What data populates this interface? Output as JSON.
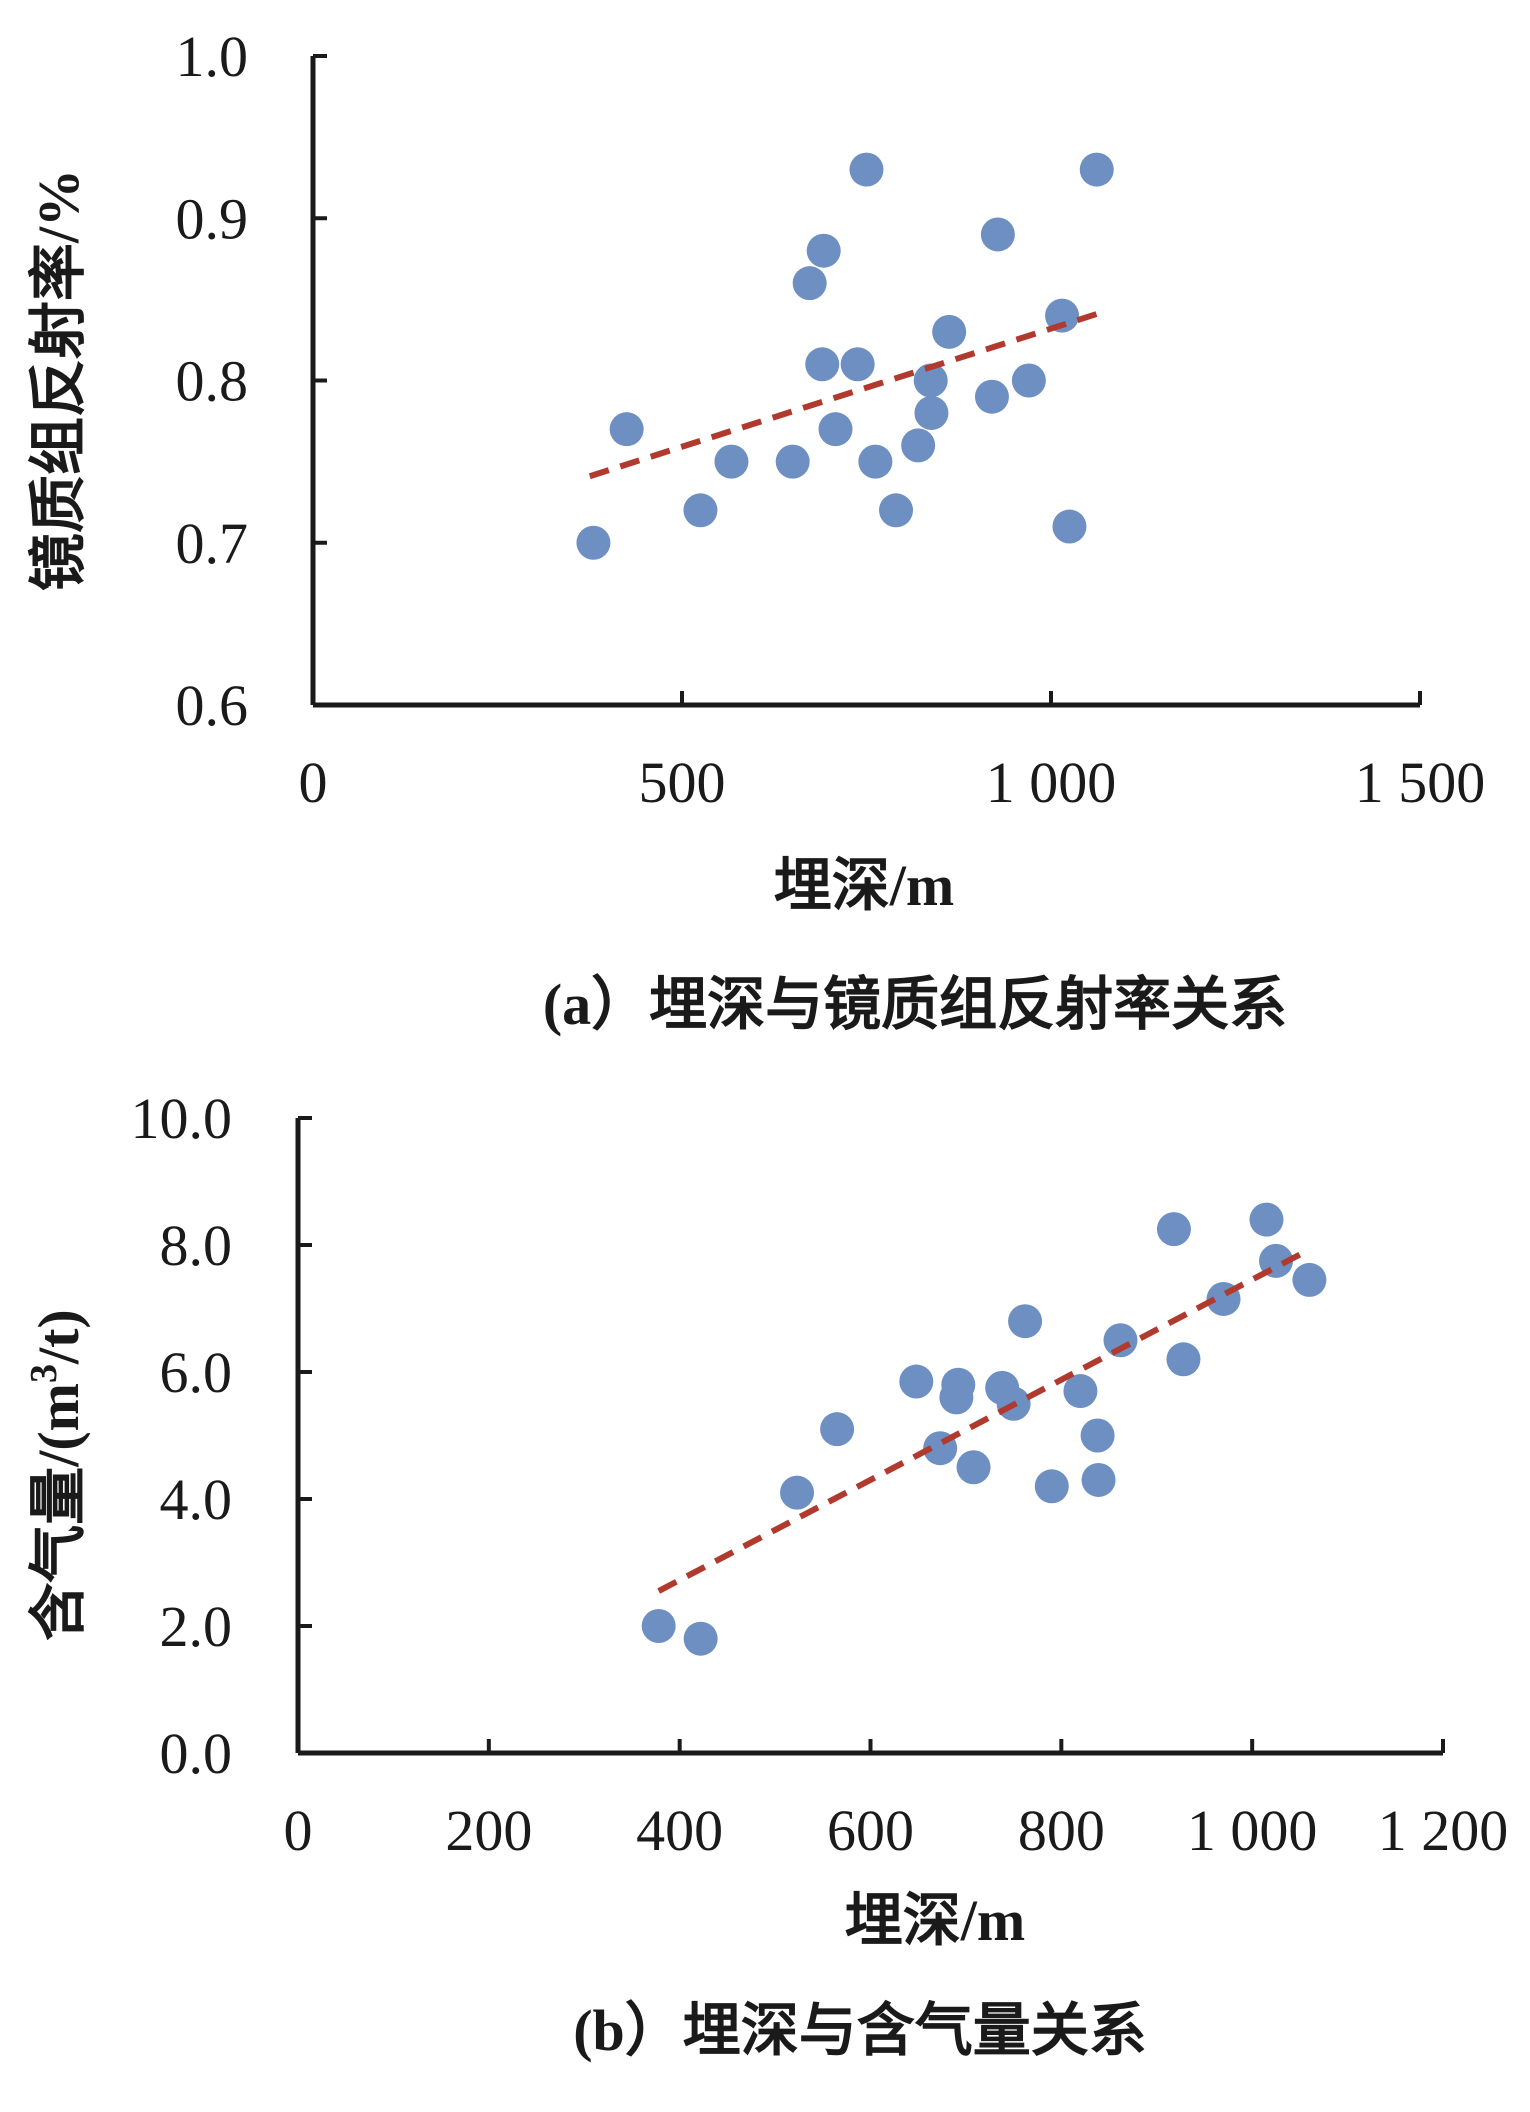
{
  "colors": {
    "point": "#6e8fc2",
    "trend": "#b03a2e",
    "axis": "#1a1a1a"
  },
  "chart_data": [
    {
      "type": "scatter",
      "caption": "(a）埋深与镜质组反射率关系",
      "xlabel": "埋深/m",
      "ylabel": "镜质组反射率/%",
      "xlim": [
        0,
        1500
      ],
      "ylim": [
        0.6,
        1.0
      ],
      "xticks": [
        0,
        500,
        1000,
        1500
      ],
      "xtick_labels": [
        "0",
        "500",
        "1 000",
        "1 500"
      ],
      "yticks": [
        0.6,
        0.7,
        0.8,
        0.9,
        1.0
      ],
      "ytick_labels": [
        "0.6",
        "0.7",
        "0.8",
        "0.9",
        "1.0"
      ],
      "points": [
        [
          380,
          0.7
        ],
        [
          425,
          0.77
        ],
        [
          525,
          0.72
        ],
        [
          567,
          0.75
        ],
        [
          650,
          0.75
        ],
        [
          673,
          0.86
        ],
        [
          690,
          0.81
        ],
        [
          692,
          0.88
        ],
        [
          708,
          0.77
        ],
        [
          738,
          0.81
        ],
        [
          750,
          0.93
        ],
        [
          762,
          0.75
        ],
        [
          790,
          0.72
        ],
        [
          820,
          0.76
        ],
        [
          837,
          0.8
        ],
        [
          838,
          0.78
        ],
        [
          862,
          0.83
        ],
        [
          920,
          0.79
        ],
        [
          928,
          0.89
        ],
        [
          970,
          0.8
        ],
        [
          1015,
          0.84
        ],
        [
          1025,
          0.71
        ],
        [
          1062,
          0.93
        ]
      ],
      "trendline": {
        "x": [
          375,
          1062
        ],
        "y": [
          0.741,
          0.841
        ]
      }
    },
    {
      "type": "scatter",
      "caption": "(b）埋深与含气量关系",
      "xlabel": "埋深/m",
      "ylabel_main": "含气量/(m",
      "ylabel_sup": "3",
      "ylabel_tail": "/t)",
      "xlim": [
        0,
        1200
      ],
      "ylim": [
        0,
        10
      ],
      "xticks": [
        0,
        200,
        400,
        600,
        800,
        1000,
        1200
      ],
      "xtick_labels": [
        "0",
        "200",
        "400",
        "600",
        "800",
        "1 000",
        "1 200"
      ],
      "yticks": [
        0,
        2,
        4,
        6,
        8,
        10
      ],
      "ytick_labels": [
        "0.0",
        "2.0",
        "4.0",
        "6.0",
        "8.0",
        "10.0"
      ],
      "points": [
        [
          378,
          2.0
        ],
        [
          422,
          1.8
        ],
        [
          523,
          4.1
        ],
        [
          565,
          5.1
        ],
        [
          648,
          5.85
        ],
        [
          673,
          4.8
        ],
        [
          690,
          5.6
        ],
        [
          692,
          5.8
        ],
        [
          708,
          4.5
        ],
        [
          738,
          5.75
        ],
        [
          750,
          5.5
        ],
        [
          762,
          6.8
        ],
        [
          790,
          4.2
        ],
        [
          820,
          5.7
        ],
        [
          838,
          5.0
        ],
        [
          839,
          4.3
        ],
        [
          862,
          6.5
        ],
        [
          918,
          8.25
        ],
        [
          928,
          6.2
        ],
        [
          970,
          7.15
        ],
        [
          1015,
          8.4
        ],
        [
          1025,
          7.75
        ],
        [
          1060,
          7.45
        ]
      ],
      "trendline": {
        "x": [
          378,
          1050
        ],
        "y": [
          2.55,
          7.85
        ]
      }
    }
  ]
}
